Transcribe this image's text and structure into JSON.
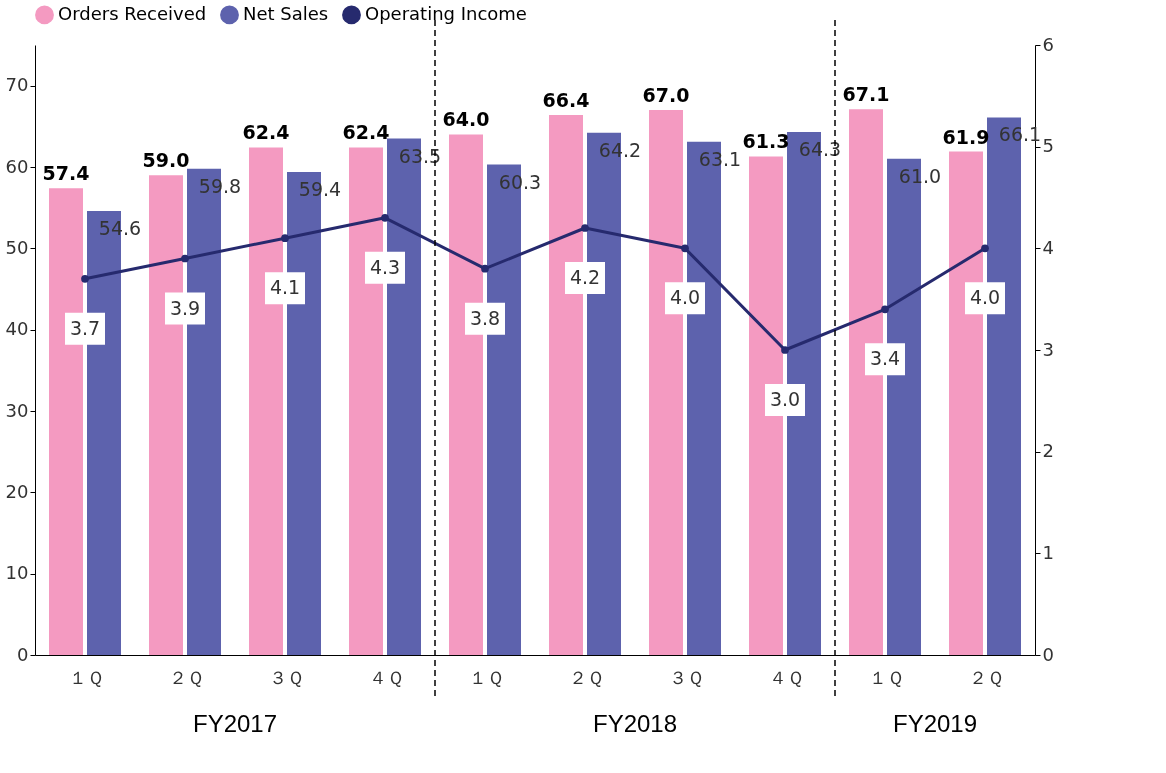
{
  "chart_data": {
    "type": "bar",
    "categories": [
      "１Ｑ",
      "２Ｑ",
      "３Ｑ",
      "４Ｑ",
      "１Ｑ",
      "２Ｑ",
      "３Ｑ",
      "４Ｑ",
      "１Ｑ",
      "２Ｑ"
    ],
    "series": [
      {
        "name": "Orders Received",
        "color": "#f49ac1",
        "values": [
          57.4,
          59.0,
          62.4,
          62.4,
          64.0,
          66.4,
          67.0,
          61.3,
          67.1,
          61.9
        ],
        "value_labels": [
          "57.4",
          "59.0",
          "62.4",
          "62.4",
          "64.0",
          "66.4",
          "67.0",
          "61.3",
          "67.1",
          "61.9"
        ]
      },
      {
        "name": "Net Sales",
        "color": "#5d62ad",
        "values": [
          54.6,
          59.8,
          59.4,
          63.5,
          60.3,
          64.2,
          63.1,
          64.3,
          61.0,
          66.1
        ],
        "value_labels": [
          "54.6",
          "59.8",
          "59.4",
          "63.5",
          "60.3",
          "64.2",
          "63.1",
          "64.3",
          "61.0",
          "66.1"
        ]
      },
      {
        "name": "Operating Income",
        "type": "line",
        "axis": "y2",
        "color": "#262a6e",
        "values": [
          3.7,
          3.9,
          4.1,
          4.3,
          3.8,
          4.2,
          4.0,
          3.0,
          3.4,
          4.0
        ],
        "value_labels": [
          "3.7",
          "3.9",
          "4.1",
          "4.3",
          "3.8",
          "4.2",
          "4.0",
          "3.0",
          "3.4",
          "4.0"
        ]
      }
    ],
    "ylim": [
      0,
      75
    ],
    "yticks": [
      0,
      10,
      20,
      30,
      40,
      50,
      60,
      70
    ],
    "y2lim": [
      0,
      6
    ],
    "y2ticks": [
      0,
      1,
      2,
      3,
      4,
      5,
      6
    ],
    "annotations": [
      "FY2017",
      "FY2018",
      "FY2019"
    ],
    "legend": "top",
    "grid": false,
    "marker": "circle",
    "line_style": "solid"
  }
}
